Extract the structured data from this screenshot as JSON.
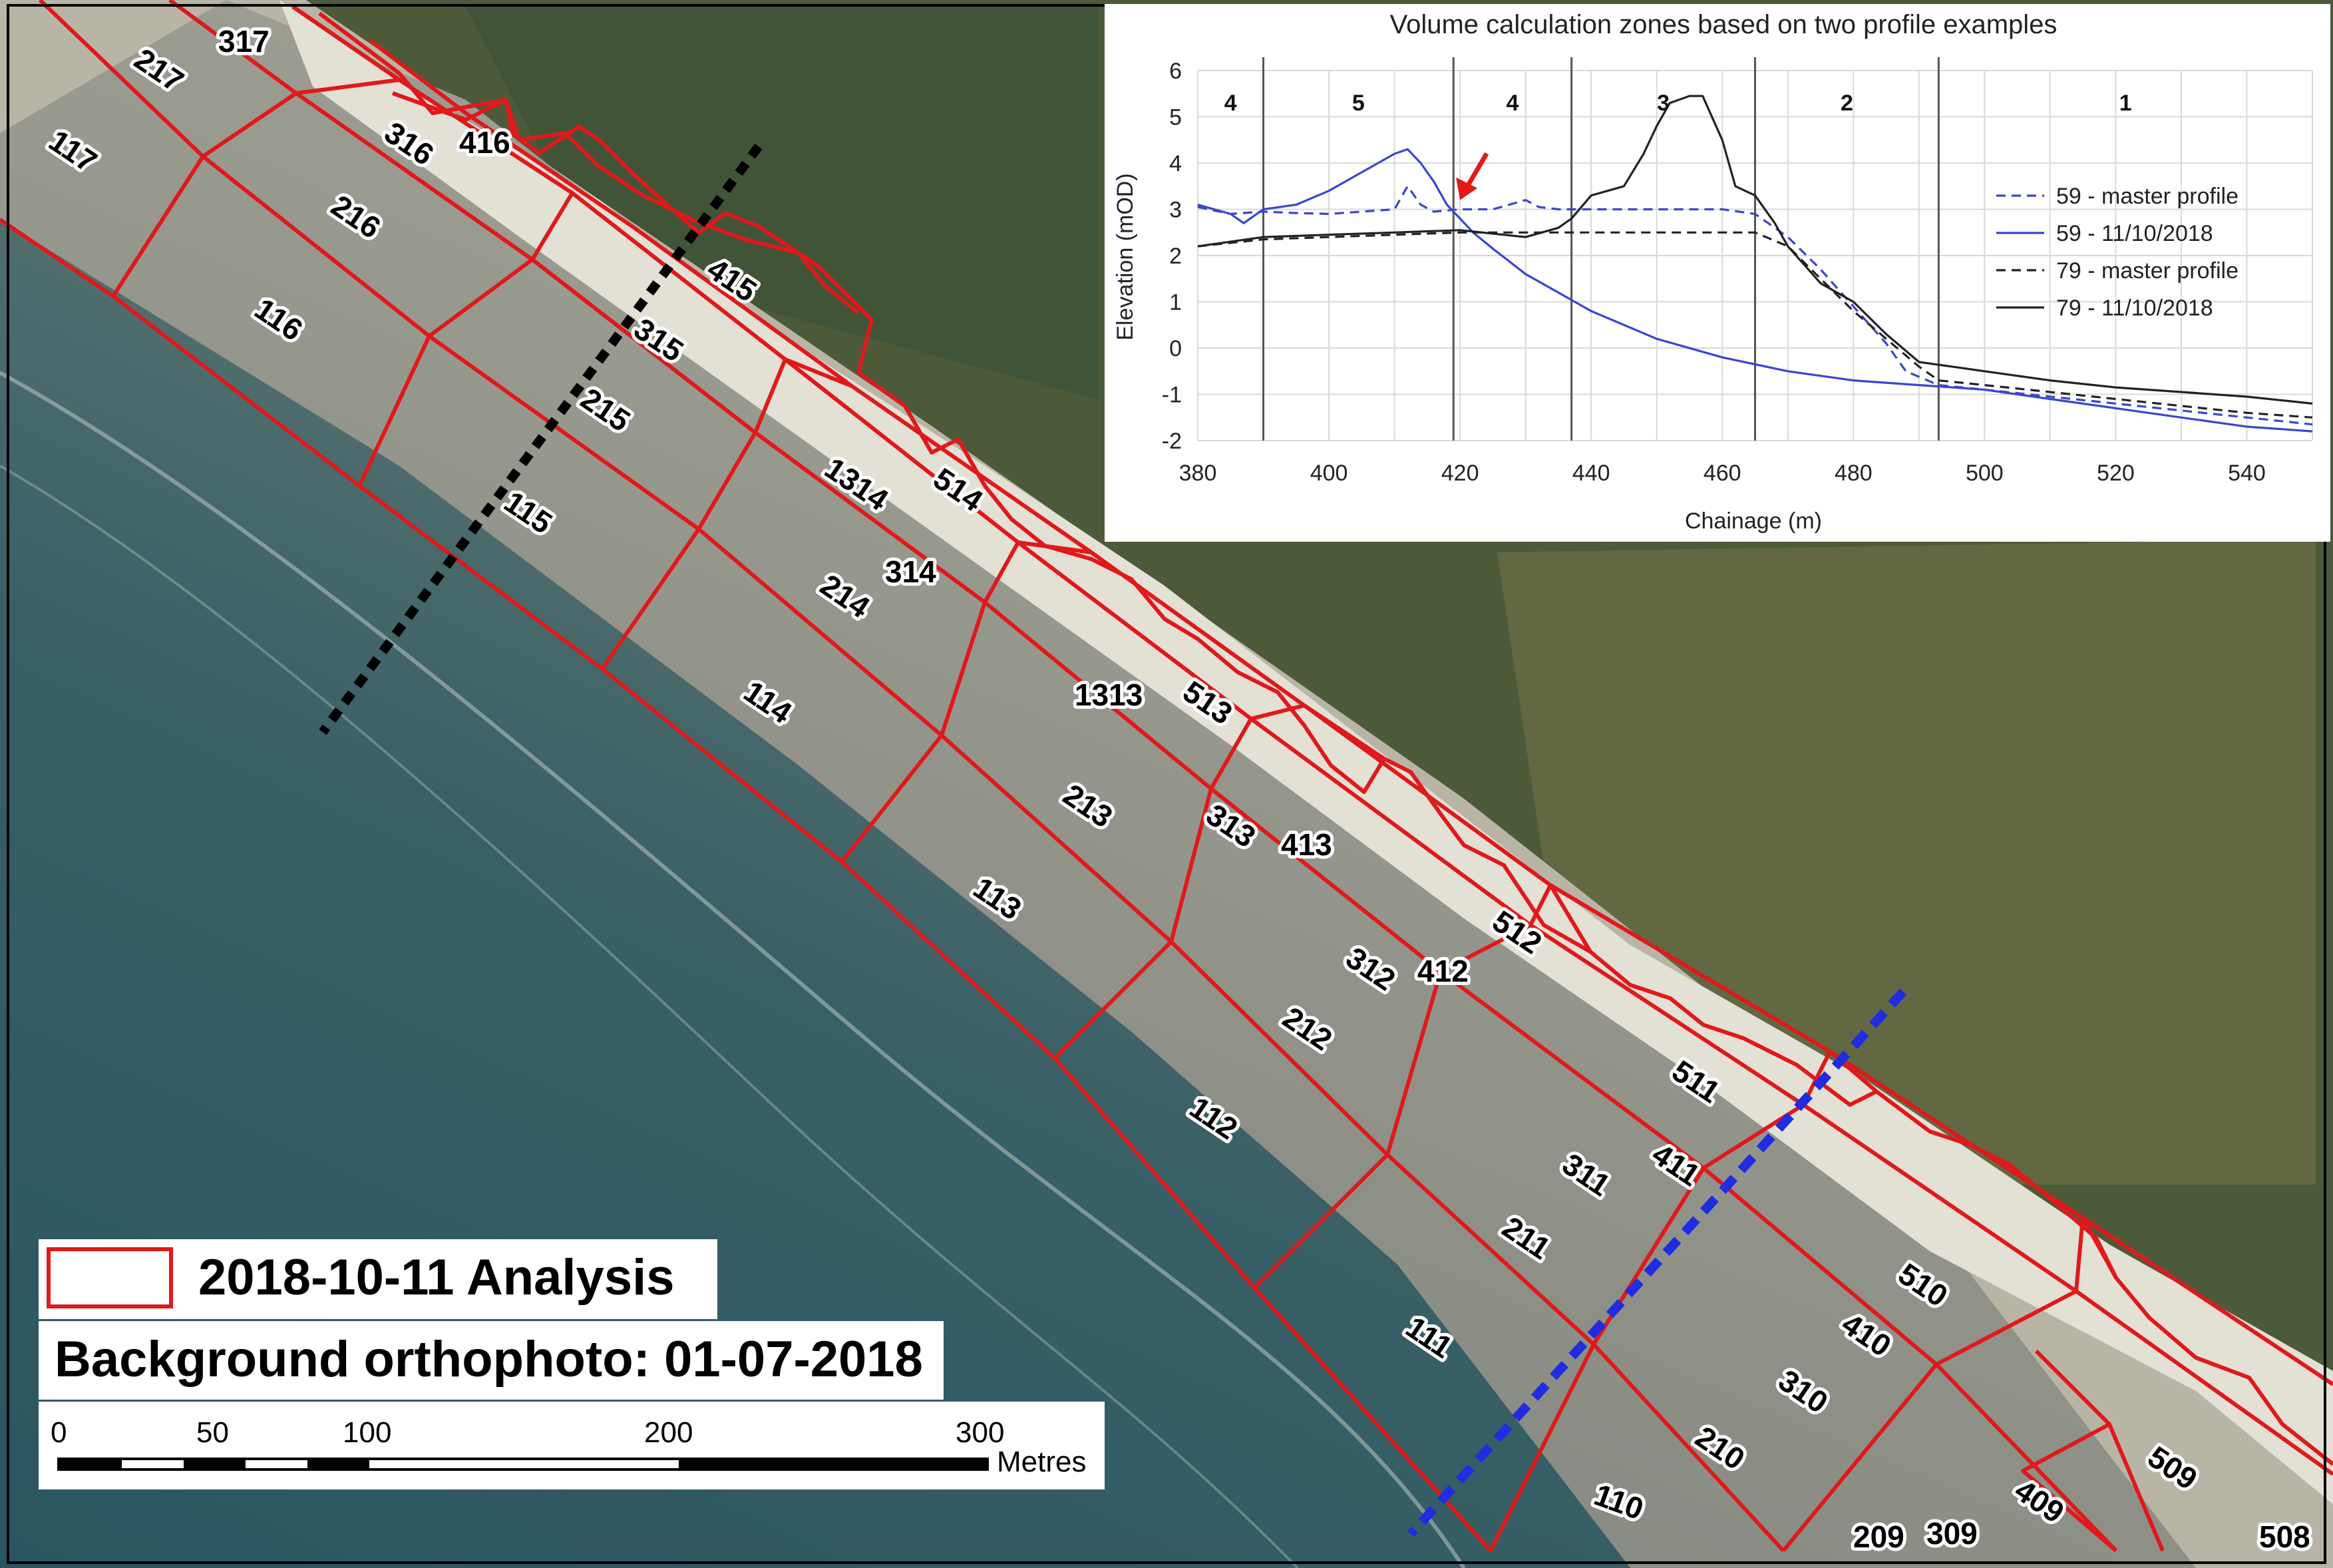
{
  "colors": {
    "zone_line": "#e0191a",
    "sea_deep": "#2f5a62",
    "sea_shallow": "#657a74",
    "beach_wet": "#8c8b82",
    "beach_dry": "#c9c4b4",
    "cliff_chalk": "#e6e3da",
    "land_green": "#4c5a3a",
    "profile_black": "#000000",
    "profile_blue": "#1f2ce0",
    "series_blue": "#3a45d0",
    "series_black": "#222222",
    "arrow_red": "#e0191a"
  },
  "map": {
    "zone_labels": [
      "317",
      "217",
      "117",
      "416",
      "316",
      "216",
      "116",
      "415",
      "315",
      "215",
      "115",
      "514",
      "1314",
      "314",
      "214",
      "114",
      "513",
      "1313",
      "213",
      "113",
      "413",
      "313",
      "512",
      "412",
      "312",
      "212",
      "112",
      "511",
      "411",
      "311",
      "211",
      "111",
      "510",
      "410",
      "310",
      "210",
      "110",
      "509",
      "409",
      "309",
      "209",
      "508"
    ],
    "profile_lines": [
      {
        "name": "59",
        "style": "dotted",
        "color": "black"
      },
      {
        "name": "79",
        "style": "dashed",
        "color": "blue"
      }
    ]
  },
  "legend": {
    "analysis_label": "2018-10-11 Analysis",
    "orthophoto_label": "Background orthophoto: 01-07-2018"
  },
  "scalebar": {
    "tick_labels": [
      "0",
      "50",
      "100",
      "200",
      "300"
    ],
    "tick_values": [
      0,
      50,
      100,
      200,
      300
    ],
    "max": 300,
    "units": "Metres"
  },
  "chart_data": {
    "type": "line",
    "title": "Volume calculation zones based on two profile examples",
    "xlabel": "Chainage (m)",
    "ylabel": "Elevation (mOD)",
    "xlim": [
      380,
      550
    ],
    "ylim": [
      -2,
      6
    ],
    "x_ticks": [
      380,
      400,
      420,
      440,
      460,
      480,
      500,
      520,
      540
    ],
    "y_ticks": [
      -2,
      -1,
      0,
      1,
      2,
      3,
      4,
      5,
      6
    ],
    "grid": true,
    "legend_position": "right",
    "zone_boundaries": [
      390,
      419,
      437,
      465,
      493
    ],
    "zone_labels": [
      {
        "label": "4",
        "x": 385,
        "color": "black"
      },
      {
        "label": "5",
        "x": 404.5,
        "color": "blue"
      },
      {
        "label": "4",
        "x": 428,
        "color": "black"
      },
      {
        "label": "3",
        "x": 451,
        "color": "black"
      },
      {
        "label": "2",
        "x": 479,
        "color": "black"
      },
      {
        "label": "1",
        "x": 521.5,
        "color": "black"
      }
    ],
    "annotation": {
      "type": "arrow",
      "x": 420,
      "y": 3.2,
      "color": "red"
    },
    "series": [
      {
        "name": "59 - master profile",
        "color": "blue",
        "dash": true,
        "x": [
          380,
          385,
          390,
          395,
          400,
          405,
          410,
          412,
          414,
          416,
          420,
          425,
          430,
          432,
          435,
          440,
          450,
          460,
          465,
          470,
          475,
          480,
          485,
          488,
          493,
          500,
          520,
          540,
          550
        ],
        "y": [
          3.05,
          2.9,
          2.95,
          2.92,
          2.9,
          2.95,
          3.0,
          3.5,
          3.1,
          2.95,
          3.0,
          3.0,
          3.2,
          3.05,
          3.0,
          3.0,
          3.0,
          3.0,
          2.9,
          2.4,
          1.7,
          0.9,
          0.1,
          -0.5,
          -0.8,
          -0.9,
          -1.2,
          -1.5,
          -1.65
        ]
      },
      {
        "name": "59 - 11/10/2018",
        "color": "blue",
        "dash": false,
        "x": [
          380,
          385,
          387,
          390,
          395,
          400,
          405,
          410,
          412,
          414,
          416,
          418,
          420,
          422,
          425,
          430,
          440,
          450,
          460,
          470,
          480,
          490,
          500,
          510,
          520,
          530,
          540,
          550
        ],
        "y": [
          3.1,
          2.9,
          2.7,
          3.0,
          3.1,
          3.4,
          3.8,
          4.2,
          4.3,
          4.0,
          3.6,
          3.1,
          2.8,
          2.5,
          2.15,
          1.6,
          0.8,
          0.2,
          -0.2,
          -0.5,
          -0.7,
          -0.8,
          -0.9,
          -1.1,
          -1.3,
          -1.5,
          -1.7,
          -1.8
        ]
      },
      {
        "name": "79 - master profile",
        "color": "black",
        "dash": true,
        "x": [
          380,
          390,
          400,
          410,
          420,
          430,
          440,
          450,
          460,
          465,
          470,
          475,
          480,
          485,
          490,
          493,
          500,
          520,
          540,
          550
        ],
        "y": [
          2.2,
          2.35,
          2.4,
          2.45,
          2.5,
          2.5,
          2.5,
          2.5,
          2.5,
          2.5,
          2.2,
          1.5,
          0.8,
          0.2,
          -0.4,
          -0.7,
          -0.8,
          -1.1,
          -1.4,
          -1.5
        ]
      },
      {
        "name": "79 - 11/10/2018",
        "color": "black",
        "dash": false,
        "x": [
          380,
          390,
          400,
          410,
          420,
          430,
          435,
          437,
          440,
          445,
          448,
          450,
          452,
          455,
          457,
          460,
          462,
          465,
          468,
          470,
          475,
          480,
          485,
          490,
          495,
          500,
          510,
          520,
          530,
          540,
          550
        ],
        "y": [
          2.2,
          2.4,
          2.45,
          2.5,
          2.55,
          2.4,
          2.6,
          2.8,
          3.3,
          3.5,
          4.2,
          4.8,
          5.3,
          5.45,
          5.45,
          4.5,
          3.5,
          3.3,
          2.7,
          2.2,
          1.4,
          1.0,
          0.3,
          -0.3,
          -0.4,
          -0.5,
          -0.7,
          -0.85,
          -0.95,
          -1.05,
          -1.2
        ]
      }
    ]
  }
}
